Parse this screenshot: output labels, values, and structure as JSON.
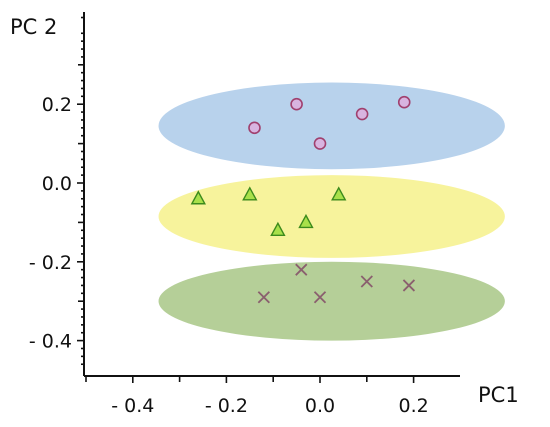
{
  "chart_data": {
    "type": "scatter",
    "xlabel": "PC1",
    "ylabel": "PC 2",
    "xlim": [
      -0.5,
      0.3
    ],
    "ylim": [
      -0.48,
      0.45
    ],
    "xticks": [
      {
        "value": -0.4,
        "label": "- 0.4"
      },
      {
        "value": -0.2,
        "label": "- 0.2"
      },
      {
        "value": 0.0,
        "label": "0.0"
      },
      {
        "value": 0.2,
        "label": "0.2"
      }
    ],
    "yticks": [
      {
        "value": 0.2,
        "label": "0.2"
      },
      {
        "value": 0.0,
        "label": "0.0"
      },
      {
        "value": -0.2,
        "label": "- 0.2"
      },
      {
        "value": -0.4,
        "label": "- 0.4"
      }
    ],
    "grid": false,
    "series": [
      {
        "marker": "circle",
        "color": "#a0406e",
        "ellipse_color": "#b8d2ec",
        "points": [
          {
            "x": -0.14,
            "y": 0.14
          },
          {
            "x": -0.05,
            "y": 0.2
          },
          {
            "x": 0.0,
            "y": 0.1
          },
          {
            "x": 0.09,
            "y": 0.175
          },
          {
            "x": 0.18,
            "y": 0.205
          }
        ]
      },
      {
        "marker": "triangle",
        "color": "#3c8a1c",
        "ellipse_color": "#f7f39c",
        "points": [
          {
            "x": -0.26,
            "y": -0.04
          },
          {
            "x": -0.15,
            "y": -0.03
          },
          {
            "x": -0.09,
            "y": -0.12
          },
          {
            "x": -0.03,
            "y": -0.1
          },
          {
            "x": 0.04,
            "y": -0.03
          }
        ]
      },
      {
        "marker": "x",
        "color": "#8a5f6e",
        "ellipse_color": "#b5cf98",
        "points": [
          {
            "x": -0.12,
            "y": -0.29
          },
          {
            "x": -0.04,
            "y": -0.22
          },
          {
            "x": 0.0,
            "y": -0.29
          },
          {
            "x": 0.1,
            "y": -0.25
          },
          {
            "x": 0.19,
            "y": -0.26
          }
        ]
      }
    ],
    "ellipses": [
      {
        "center": [
          0.025,
          0.145
        ],
        "rx": 0.37,
        "ry": 0.11
      },
      {
        "center": [
          0.025,
          -0.085
        ],
        "rx": 0.37,
        "ry": 0.105
      },
      {
        "center": [
          0.025,
          -0.3
        ],
        "rx": 0.37,
        "ry": 0.1
      }
    ]
  }
}
